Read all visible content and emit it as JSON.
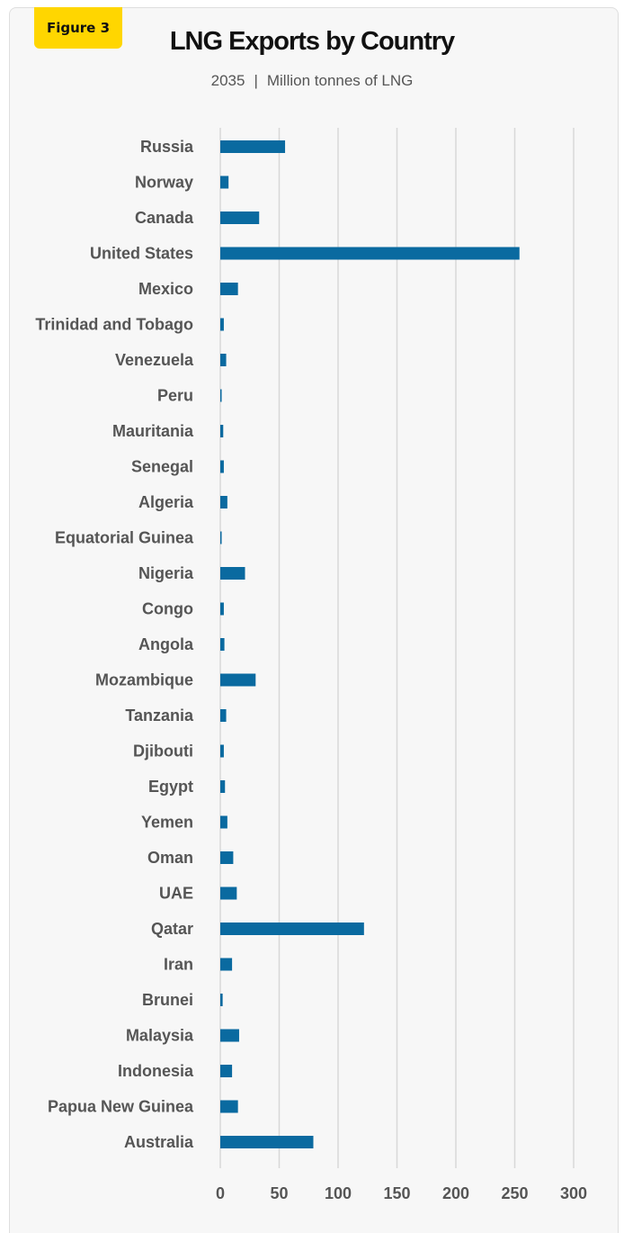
{
  "figure_label": "Figure 3",
  "colors": {
    "bar": "#0a6aa0",
    "grid": "#d8d8d8",
    "badge": "#ffd600"
  },
  "chart_data": {
    "type": "bar",
    "orientation": "horizontal",
    "title": "LNG Exports by Country",
    "subtitle_year": "2035",
    "subtitle_separator": "|",
    "subtitle_unit": "Million tonnes of LNG",
    "xlim": [
      0,
      300
    ],
    "xticks": [
      0,
      50,
      100,
      150,
      200,
      250,
      300
    ],
    "grid": "vertical",
    "categories": [
      "Russia",
      "Norway",
      "Canada",
      "United States",
      "Mexico",
      "Trinidad and Tobago",
      "Venezuela",
      "Peru",
      "Mauritania",
      "Senegal",
      "Algeria",
      "Equatorial Guinea",
      "Nigeria",
      "Congo",
      "Angola",
      "Mozambique",
      "Tanzania",
      "Djibouti",
      "Egypt",
      "Yemen",
      "Oman",
      "UAE",
      "Qatar",
      "Iran",
      "Brunei",
      "Malaysia",
      "Indonesia",
      "Papua New Guinea",
      "Australia"
    ],
    "values": [
      55,
      7,
      33,
      254,
      15,
      3,
      5,
      0.5,
      2.5,
      3,
      6,
      0.5,
      21,
      3,
      3.5,
      30,
      5,
      3,
      4,
      6,
      11,
      14,
      122,
      10,
      2,
      16,
      10,
      15,
      79
    ]
  }
}
